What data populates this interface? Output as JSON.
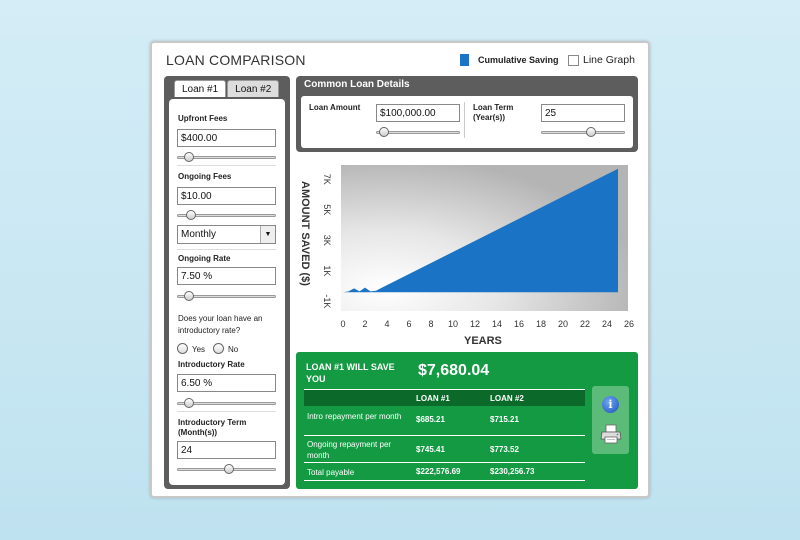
{
  "app": {
    "title": "LOAN COMPARISON",
    "legend_cumulative": "Cumulative Saving",
    "legend_line": "Line Graph",
    "accent_color": "#1a73c4",
    "result_color": "#139a42"
  },
  "tabs": [
    {
      "label": "Loan #1",
      "active": true
    },
    {
      "label": "Loan #2",
      "active": false
    }
  ],
  "loan1": {
    "upfront_fees_label": "Upfront Fees",
    "upfront_fees_value": "$400.00",
    "ongoing_fees_label": "Ongoing Fees",
    "ongoing_fees_value": "$10.00",
    "frequency_value": "Monthly",
    "ongoing_rate_label": "Ongoing Rate",
    "ongoing_rate_value": "7.50 %",
    "intro_question": "Does your loan have an introductory rate?",
    "yes_label": "Yes",
    "no_label": "No",
    "intro_rate_label": "Introductory Rate",
    "intro_rate_value": "6.50 %",
    "intro_term_label": "Introductory Term (Month(s))",
    "intro_term_value": "24"
  },
  "common": {
    "title": "Common Loan Details",
    "loan_amount_label": "Loan Amount",
    "loan_amount_value": "$100,000.00",
    "loan_term_label": "Loan Term (Year(s))",
    "loan_term_value": "25"
  },
  "chart_data": {
    "type": "area",
    "ylabel": "AMOUNT SAVED ($)",
    "xlabel": "YEARS",
    "x_ticks": [
      "0",
      "2",
      "4",
      "6",
      "8",
      "10",
      "12",
      "14",
      "16",
      "18",
      "20",
      "22",
      "24",
      "26"
    ],
    "y_ticks": [
      "-1K",
      "1K",
      "3K",
      "5K",
      "7K"
    ],
    "xlim": [
      0,
      26
    ],
    "ylim": [
      -1500,
      7800
    ],
    "x": [
      0,
      0.5,
      1,
      1.5,
      2,
      2.5,
      3,
      25
    ],
    "y": [
      -400,
      -350,
      -150,
      -350,
      -100,
      -350,
      -300,
      7680.04
    ],
    "color": "#1a73c4"
  },
  "results": {
    "headline": "LOAN #1 WILL SAVE YOU",
    "amount": "$7,680.04",
    "col1": "LOAN #1",
    "col2": "LOAN #2",
    "rows": [
      {
        "label": "Intro repayment per month",
        "loan1": "$685.21",
        "loan2": "$715.21"
      },
      {
        "label": "Ongoing repayment per month",
        "loan1": "$745.41",
        "loan2": "$773.52"
      },
      {
        "label": "Total payable",
        "loan1": "$222,576.69",
        "loan2": "$230,256.73"
      }
    ]
  },
  "icons": {
    "info": "info-icon",
    "print": "print-icon"
  }
}
